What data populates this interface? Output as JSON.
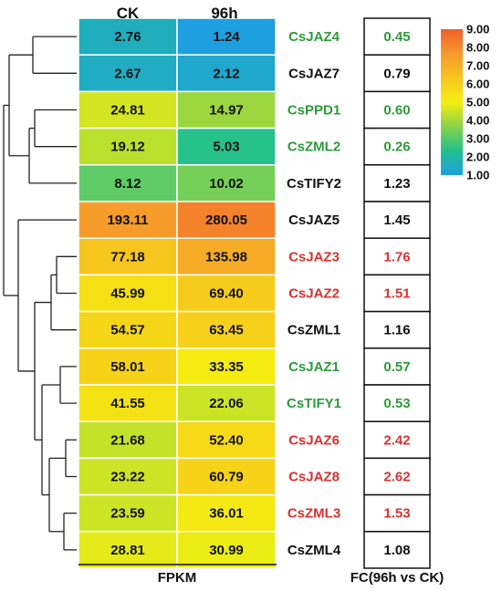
{
  "chart_data": {
    "type": "heatmap",
    "columns": [
      "CK",
      "96h"
    ],
    "rows": [
      {
        "gene": "CsJAZ4",
        "values": [
          2.76,
          1.24
        ],
        "color_values": [
          1.6,
          1.0
        ],
        "fc": "0.45",
        "status": "down"
      },
      {
        "gene": "CsJAZ7",
        "values": [
          2.67,
          2.12
        ],
        "color_values": [
          1.5,
          1.3
        ],
        "fc": "0.79",
        "status": "neutral"
      },
      {
        "gene": "CsPPD1",
        "values": [
          24.81,
          14.97
        ],
        "color_values": [
          4.6,
          3.9
        ],
        "fc": "0.60",
        "status": "down"
      },
      {
        "gene": "CsZML2",
        "values": [
          19.12,
          5.03
        ],
        "color_values": [
          4.3,
          2.4
        ],
        "fc": "0.26",
        "status": "down"
      },
      {
        "gene": "CsTIFY2",
        "values": [
          8.12,
          10.02
        ],
        "color_values": [
          3.1,
          3.4
        ],
        "fc": "1.23",
        "status": "neutral"
      },
      {
        "gene": "CsJAZ5",
        "values": [
          193.11,
          280.05
        ],
        "color_values": [
          7.6,
          8.2
        ],
        "fc": "1.45",
        "status": "neutral"
      },
      {
        "gene": "CsJAZ3",
        "values": [
          77.18,
          135.98
        ],
        "color_values": [
          6.3,
          7.1
        ],
        "fc": "1.76",
        "status": "up"
      },
      {
        "gene": "CsJAZ2",
        "values": [
          45.99,
          69.4
        ],
        "color_values": [
          5.5,
          6.1
        ],
        "fc": "1.51",
        "status": "up"
      },
      {
        "gene": "CsZML1",
        "values": [
          54.57,
          63.45
        ],
        "color_values": [
          5.8,
          6.0
        ],
        "fc": "1.16",
        "status": "neutral"
      },
      {
        "gene": "CsJAZ1",
        "values": [
          58.01,
          33.35
        ],
        "color_values": [
          5.9,
          5.1
        ],
        "fc": "0.57",
        "status": "down"
      },
      {
        "gene": "CsTIFY1",
        "values": [
          41.55,
          22.06
        ],
        "color_values": [
          5.4,
          4.5
        ],
        "fc": "0.53",
        "status": "down"
      },
      {
        "gene": "CsJAZ6",
        "values": [
          21.68,
          52.4
        ],
        "color_values": [
          4.4,
          5.7
        ],
        "fc": "2.42",
        "status": "up"
      },
      {
        "gene": "CsJAZ8",
        "values": [
          23.22,
          60.79
        ],
        "color_values": [
          4.5,
          5.9
        ],
        "fc": "2.62",
        "status": "up"
      },
      {
        "gene": "CsZML3",
        "values": [
          23.59,
          36.01
        ],
        "color_values": [
          4.5,
          5.2
        ],
        "fc": "1.53",
        "status": "up"
      },
      {
        "gene": "CsZML4",
        "values": [
          28.81,
          30.99
        ],
        "color_values": [
          4.8,
          4.9
        ],
        "fc": "1.08",
        "status": "neutral"
      }
    ],
    "colorbar": {
      "min": 1.0,
      "max": 9.0,
      "ticks": [
        "1.00",
        "2.00",
        "3.00",
        "4.00",
        "5.00",
        "6.00",
        "7.00",
        "8.00",
        "9.00"
      ],
      "stops": [
        "#1e9fe0",
        "#22c18f",
        "#8ad24a",
        "#f4ef10",
        "#f7c51e",
        "#f59a2c",
        "#ef5f2a"
      ]
    },
    "xlabel": "FPKM",
    "fc_label": "FC(96h vs CK)"
  },
  "colors": {
    "up": "#d8322f",
    "down": "#2e9a3a",
    "neutral": "#111111"
  }
}
